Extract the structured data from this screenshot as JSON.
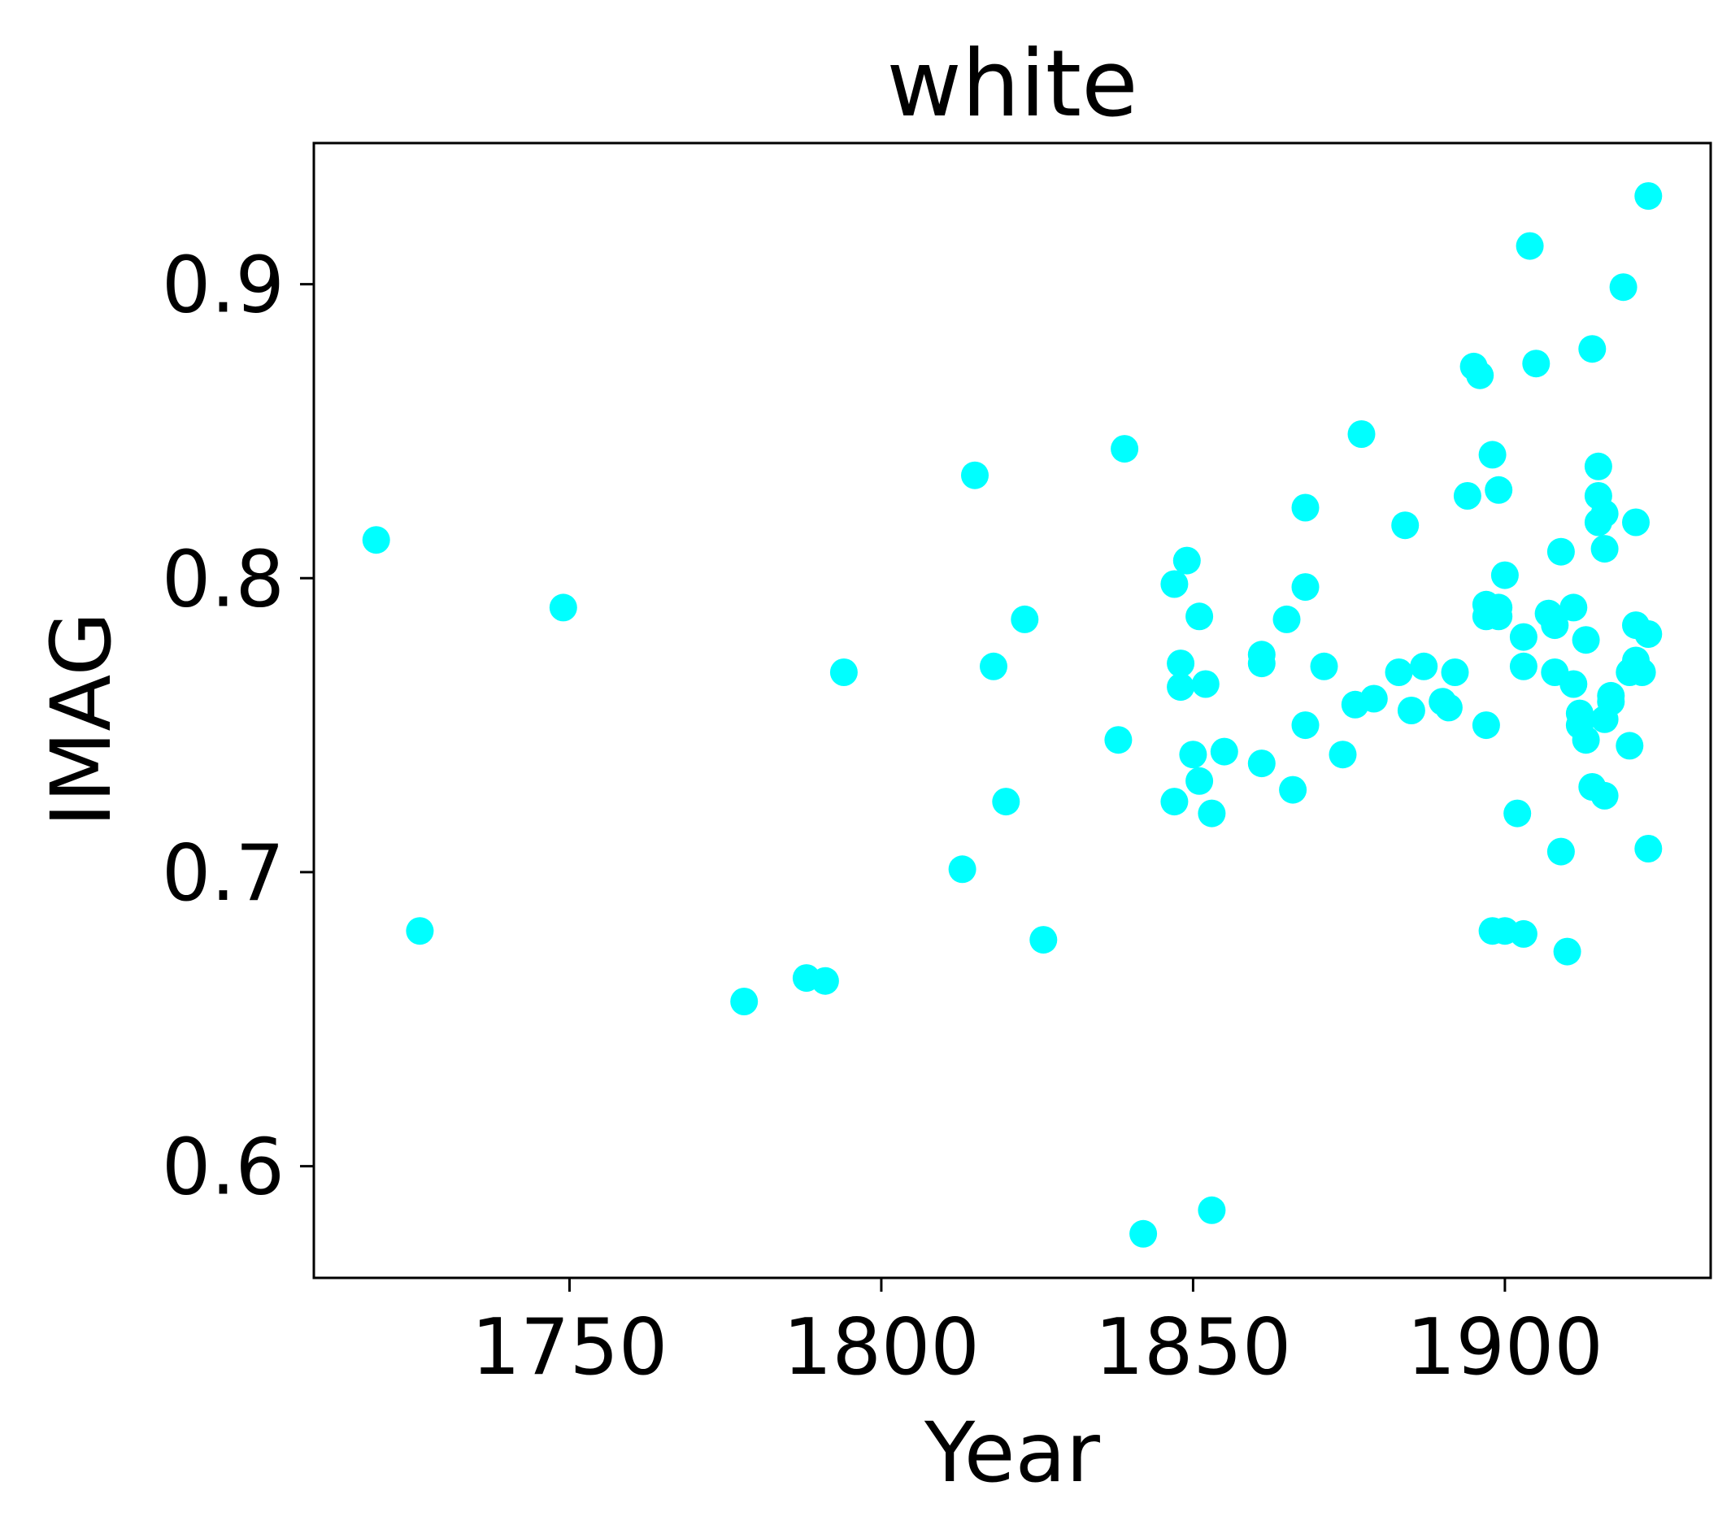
{
  "chart_data": {
    "type": "scatter",
    "title": "white",
    "xlabel": "Year",
    "ylabel": "IMAG",
    "xlim": [
      1709,
      1933
    ],
    "ylim": [
      0.562,
      0.948
    ],
    "xticks": [
      1750,
      1800,
      1850,
      1900
    ],
    "yticks": [
      0.6,
      0.7,
      0.8,
      0.9
    ],
    "xtick_labels": [
      "1750",
      "1800",
      "1850",
      "1900"
    ],
    "ytick_labels": [
      "0.6",
      "0.7",
      "0.8",
      "0.9"
    ],
    "grid": false,
    "marker_color": "#00ffff",
    "series": [
      {
        "points": [
          [
            1719,
            0.813
          ],
          [
            1726,
            0.68
          ],
          [
            1749,
            0.79
          ],
          [
            1778,
            0.656
          ],
          [
            1788,
            0.664
          ],
          [
            1791,
            0.663
          ],
          [
            1794,
            0.768
          ],
          [
            1813,
            0.701
          ],
          [
            1815,
            0.835
          ],
          [
            1818,
            0.77
          ],
          [
            1820,
            0.724
          ],
          [
            1823,
            0.786
          ],
          [
            1826,
            0.677
          ],
          [
            1838,
            0.745
          ],
          [
            1839,
            0.844
          ],
          [
            1842,
            0.577
          ],
          [
            1847,
            0.798
          ],
          [
            1847,
            0.724
          ],
          [
            1848,
            0.771
          ],
          [
            1848,
            0.763
          ],
          [
            1849,
            0.806
          ],
          [
            1850,
            0.74
          ],
          [
            1851,
            0.731
          ],
          [
            1851,
            0.787
          ],
          [
            1852,
            0.764
          ],
          [
            1853,
            0.72
          ],
          [
            1853,
            0.585
          ],
          [
            1855,
            0.741
          ],
          [
            1861,
            0.737
          ],
          [
            1861,
            0.774
          ],
          [
            1861,
            0.771
          ],
          [
            1865,
            0.786
          ],
          [
            1866,
            0.728
          ],
          [
            1868,
            0.797
          ],
          [
            1868,
            0.824
          ],
          [
            1868,
            0.75
          ],
          [
            1871,
            0.77
          ],
          [
            1874,
            0.74
          ],
          [
            1876,
            0.757
          ],
          [
            1877,
            0.849
          ],
          [
            1879,
            0.759
          ],
          [
            1883,
            0.768
          ],
          [
            1884,
            0.818
          ],
          [
            1885,
            0.755
          ],
          [
            1887,
            0.77
          ],
          [
            1890,
            0.758
          ],
          [
            1891,
            0.756
          ],
          [
            1892,
            0.768
          ],
          [
            1894,
            0.828
          ],
          [
            1895,
            0.872
          ],
          [
            1896,
            0.869
          ],
          [
            1897,
            0.791
          ],
          [
            1897,
            0.787
          ],
          [
            1897,
            0.75
          ],
          [
            1898,
            0.842
          ],
          [
            1898,
            0.68
          ],
          [
            1899,
            0.83
          ],
          [
            1899,
            0.79
          ],
          [
            1899,
            0.787
          ],
          [
            1900,
            0.68
          ],
          [
            1900,
            0.801
          ],
          [
            1902,
            0.72
          ],
          [
            1903,
            0.78
          ],
          [
            1903,
            0.77
          ],
          [
            1903,
            0.679
          ],
          [
            1904,
            0.913
          ],
          [
            1905,
            0.873
          ],
          [
            1907,
            0.788
          ],
          [
            1908,
            0.784
          ],
          [
            1908,
            0.768
          ],
          [
            1909,
            0.809
          ],
          [
            1909,
            0.707
          ],
          [
            1910,
            0.673
          ],
          [
            1911,
            0.79
          ],
          [
            1911,
            0.764
          ],
          [
            1912,
            0.75
          ],
          [
            1912,
            0.754
          ],
          [
            1913,
            0.779
          ],
          [
            1913,
            0.745
          ],
          [
            1914,
            0.878
          ],
          [
            1914,
            0.729
          ],
          [
            1915,
            0.838
          ],
          [
            1915,
            0.828
          ],
          [
            1915,
            0.819
          ],
          [
            1916,
            0.81
          ],
          [
            1916,
            0.822
          ],
          [
            1916,
            0.726
          ],
          [
            1916,
            0.752
          ],
          [
            1917,
            0.76
          ],
          [
            1917,
            0.758
          ],
          [
            1919,
            0.899
          ],
          [
            1920,
            0.743
          ],
          [
            1920,
            0.768
          ],
          [
            1921,
            0.819
          ],
          [
            1921,
            0.784
          ],
          [
            1921,
            0.77
          ],
          [
            1921,
            0.772
          ],
          [
            1922,
            0.768
          ],
          [
            1923,
            0.93
          ],
          [
            1923,
            0.781
          ],
          [
            1923,
            0.708
          ]
        ]
      }
    ]
  }
}
